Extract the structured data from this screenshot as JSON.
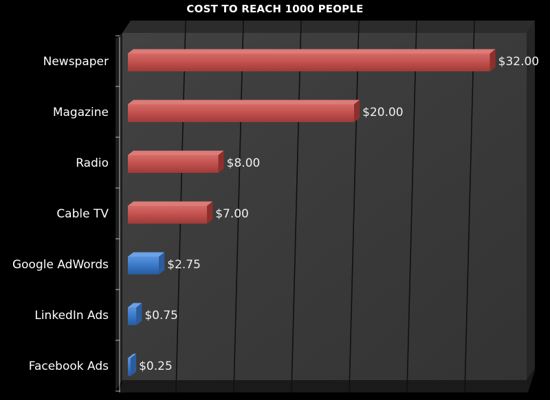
{
  "chart_data": {
    "type": "bar",
    "orientation": "horizontal",
    "title": "COST TO REACH 1000 PEOPLE",
    "xlabel": "",
    "ylabel": "",
    "categories": [
      "Newspaper",
      "Magazine",
      "Radio",
      "Cable TV",
      "Google AdWords",
      "LinkedIn Ads",
      "Facebook Ads"
    ],
    "values": [
      32.0,
      20.0,
      8.0,
      7.0,
      2.75,
      0.75,
      0.25
    ],
    "data_labels": [
      "$32.00",
      "$20.00",
      "$8.00",
      "$7.00",
      "$2.75",
      "$0.75",
      "$0.25"
    ],
    "bar_colors": [
      "#c0504d",
      "#c0504d",
      "#c0504d",
      "#c0504d",
      "#3a78c8",
      "#3a78c8",
      "#3a78c8"
    ],
    "xlim": [
      0,
      35
    ],
    "grid": true,
    "style": "3d",
    "legend": "none",
    "colors": {
      "background": "#000000",
      "plot_wall": "#3c3c3c",
      "plot_floor": "#2a2a2a",
      "gridline": "#101010",
      "text": "#ffffff",
      "label_text": "#f0f0f0"
    }
  }
}
